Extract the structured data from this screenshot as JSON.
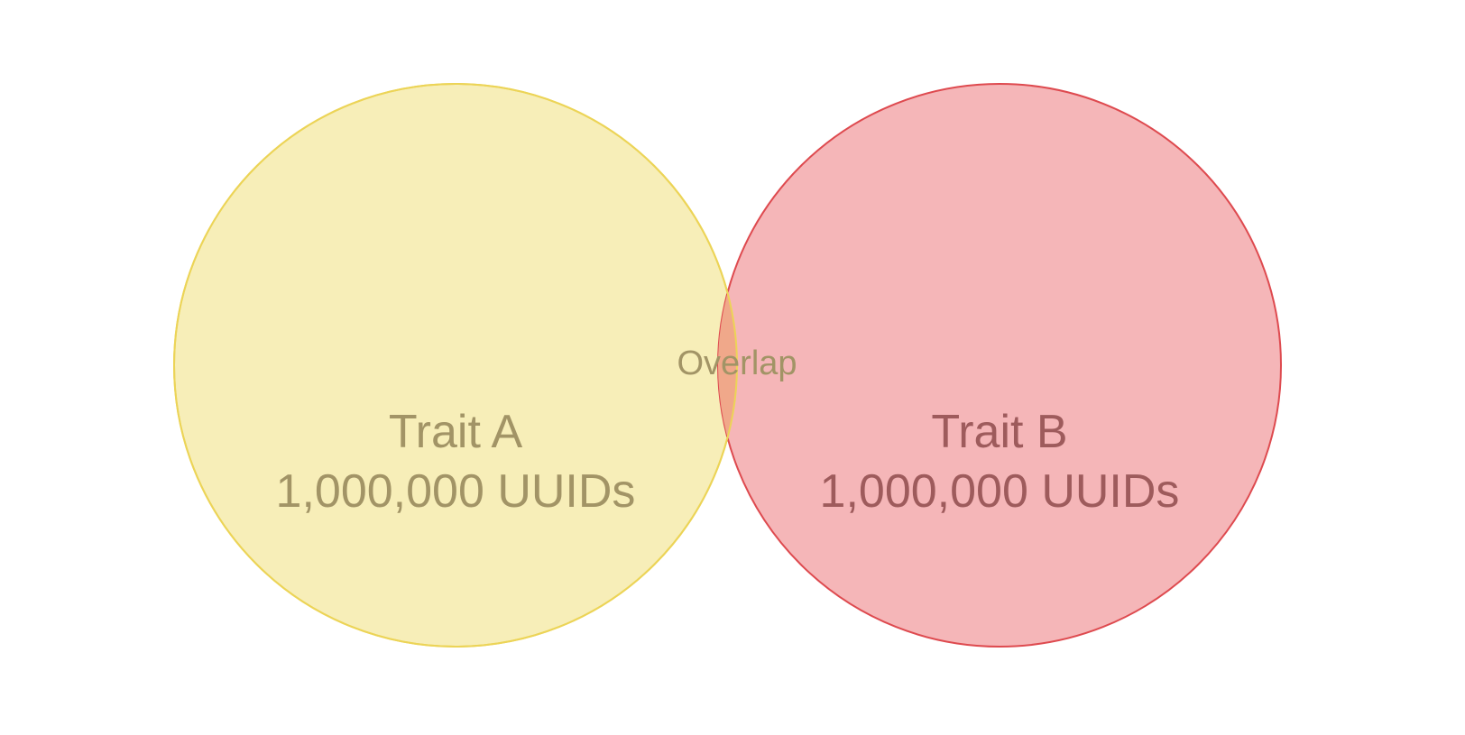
{
  "venn": {
    "sets": [
      {
        "name": "Trait A",
        "count": "1,000,000 UUIDs",
        "fill_color": "#f7eeb8",
        "stroke_color": "#ecd457",
        "text_color": "#a29466"
      },
      {
        "name": "Trait B",
        "count": "1,000,000 UUIDs",
        "fill_color": "#f5b6b8",
        "stroke_color": "#de4a4f",
        "text_color": "#9e5b5c"
      }
    ],
    "overlap": {
      "label": "Overlap",
      "fill_color": "#f0a88a"
    }
  }
}
